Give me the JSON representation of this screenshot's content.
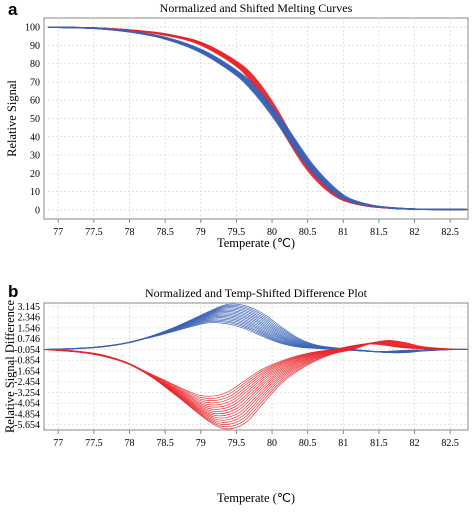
{
  "chart_data": [
    {
      "type": "line",
      "panel_label": "a",
      "title": "Normalized and Shifted Melting Curves",
      "xlabel": "Temperate (℃)",
      "ylabel": "Relative Signal",
      "xlim": [
        76.8,
        82.75
      ],
      "ylim": [
        -5,
        105
      ],
      "x_ticks": [
        "77",
        "77.5",
        "78",
        "78.5",
        "79",
        "79.5",
        "80",
        "80.5",
        "81",
        "81.5",
        "82",
        "82.5"
      ],
      "y_ticks": [
        "0",
        "10",
        "20",
        "30",
        "40",
        "50",
        "60",
        "70",
        "80",
        "90",
        "100"
      ],
      "grid": true,
      "series": [
        {
          "color": "#e8262a",
          "x": [
            76.9,
            77.5,
            78.0,
            78.5,
            79.0,
            79.5,
            79.75,
            80.0,
            80.25,
            80.5,
            80.75,
            81.0,
            81.25,
            81.5,
            82.0,
            82.7
          ],
          "y": [
            100,
            99.5,
            98.3,
            96.0,
            91.0,
            80.0,
            70.5,
            56.5,
            39.5,
            24.0,
            13.0,
            6.0,
            3.0,
            1.5,
            0.4,
            0.2
          ]
        },
        {
          "color": "#3a62b5",
          "x": [
            76.9,
            77.5,
            78.0,
            78.5,
            79.0,
            79.5,
            79.75,
            80.0,
            80.25,
            80.5,
            80.75,
            81.0,
            81.25,
            81.5,
            82.0,
            82.7
          ],
          "y": [
            100,
            99.4,
            97.6,
            94.0,
            87.0,
            75.0,
            66.0,
            54.0,
            40.0,
            26.0,
            15.0,
            7.0,
            3.5,
            1.7,
            0.4,
            0.2
          ]
        }
      ]
    },
    {
      "type": "line",
      "panel_label": "b",
      "title": "Normalized and Temp-Shifted Difference Plot",
      "xlabel": "Temperate (℃)",
      "ylabel": "Relative Signal Difference",
      "xlim": [
        76.8,
        82.75
      ],
      "ylim": [
        -6.05,
        3.4
      ],
      "x_ticks": [
        "77",
        "77.5",
        "78",
        "78.5",
        "79",
        "79.5",
        "80",
        "80.5",
        "81",
        "81.5",
        "82",
        "82.5"
      ],
      "y_ticks": [
        "3.145",
        "2.346",
        "1.546",
        "0.746",
        "-0.054",
        "-0.854",
        "-1.654",
        "-2.454",
        "-3.254",
        "-4.054",
        "-4.854",
        "-5.654"
      ],
      "grid": true,
      "series": [
        {
          "color": "#3a62b5",
          "x": [
            76.9,
            77.5,
            78.0,
            78.5,
            79.0,
            79.25,
            79.5,
            79.75,
            80.0,
            80.25,
            80.5,
            80.75,
            81.0,
            81.25,
            81.5,
            81.75,
            82.0,
            82.5,
            82.7
          ],
          "y": [
            -0.054,
            0.1,
            0.5,
            1.3,
            2.3,
            2.7,
            2.6,
            2.1,
            1.3,
            0.6,
            0.2,
            0.05,
            -0.054,
            -0.15,
            -0.25,
            -0.25,
            -0.15,
            -0.05,
            -0.054
          ]
        },
        {
          "color": "#e8262a",
          "x": [
            76.9,
            77.5,
            78.0,
            78.5,
            79.0,
            79.25,
            79.5,
            79.75,
            80.0,
            80.25,
            80.5,
            80.75,
            81.0,
            81.25,
            81.5,
            81.75,
            82.0,
            82.5,
            82.7
          ],
          "y": [
            -0.054,
            -0.4,
            -1.2,
            -2.8,
            -4.5,
            -4.9,
            -4.5,
            -3.3,
            -2.1,
            -1.3,
            -0.7,
            -0.3,
            -0.054,
            0.3,
            0.5,
            0.35,
            0.1,
            -0.054,
            -0.054
          ]
        }
      ]
    }
  ]
}
